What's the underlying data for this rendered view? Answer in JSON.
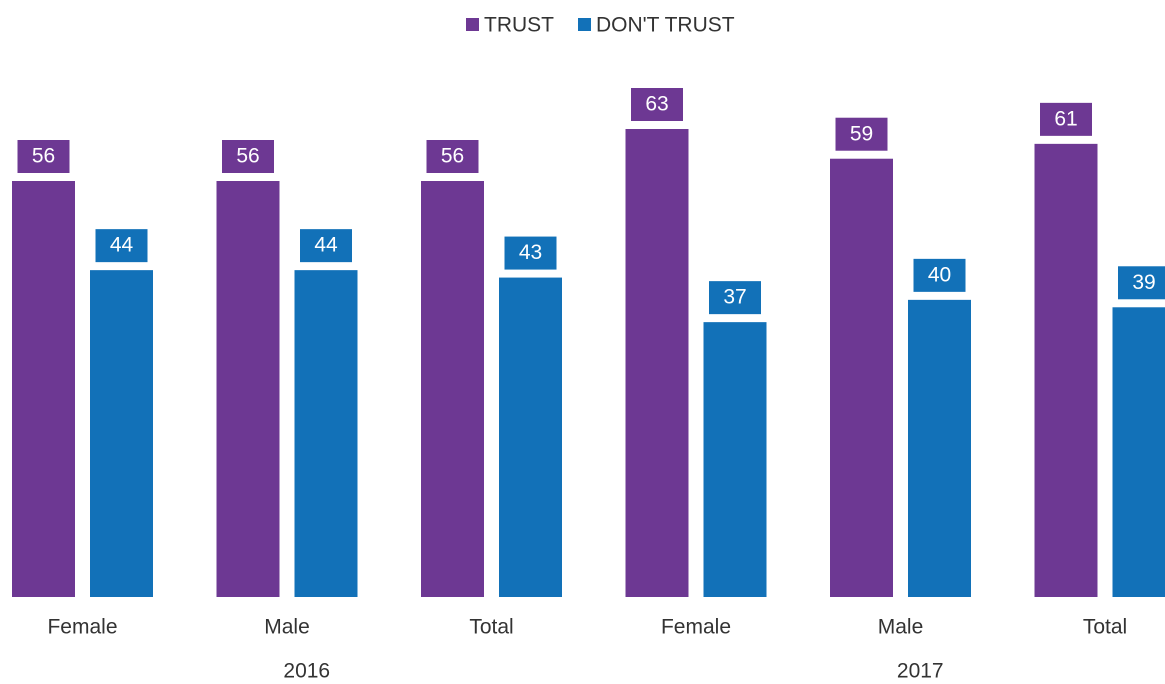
{
  "chart_data": {
    "type": "bar",
    "groups": [
      {
        "name": "2016",
        "categories": [
          "Female",
          "Male",
          "Total"
        ]
      },
      {
        "name": "2017",
        "categories": [
          "Female",
          "Male",
          "Total"
        ]
      }
    ],
    "series": [
      {
        "name": "TRUST",
        "color": "#6d3893",
        "values": [
          56,
          56,
          56,
          63,
          59,
          61
        ]
      },
      {
        "name": "DON'T TRUST",
        "color": "#1271b8",
        "values": [
          44,
          44,
          43,
          37,
          40,
          39
        ]
      }
    ],
    "ylim": [
      0,
      70
    ],
    "grid": false,
    "legend": "top"
  }
}
